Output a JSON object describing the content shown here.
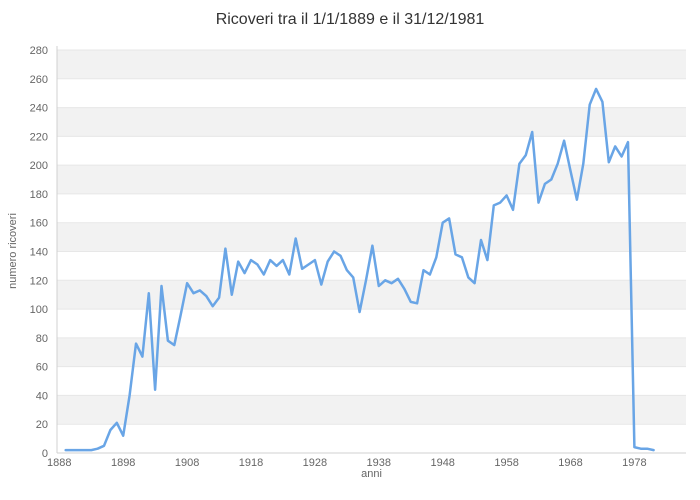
{
  "chart_data": {
    "type": "line",
    "title": "Ricoveri tra il 1/1/1889 e il 31/12/1981",
    "xlabel": "anni",
    "ylabel": "numero ricoveri",
    "legend": "none",
    "grid": "horizontal-bands",
    "xlim": [
      1888,
      1986
    ],
    "ylim": [
      0,
      280
    ],
    "x_ticks": [
      1888,
      1898,
      1908,
      1918,
      1928,
      1938,
      1948,
      1958,
      1968,
      1978
    ],
    "y_ticks": [
      0,
      20,
      40,
      60,
      80,
      100,
      120,
      140,
      160,
      180,
      200,
      220,
      240,
      260,
      280
    ],
    "x": [
      1889,
      1890,
      1891,
      1892,
      1893,
      1894,
      1895,
      1896,
      1897,
      1898,
      1899,
      1900,
      1901,
      1902,
      1903,
      1904,
      1905,
      1906,
      1907,
      1908,
      1909,
      1910,
      1911,
      1912,
      1913,
      1914,
      1915,
      1916,
      1917,
      1918,
      1919,
      1920,
      1921,
      1922,
      1923,
      1924,
      1925,
      1926,
      1927,
      1928,
      1929,
      1930,
      1931,
      1932,
      1933,
      1934,
      1935,
      1936,
      1937,
      1938,
      1939,
      1940,
      1941,
      1942,
      1943,
      1944,
      1945,
      1946,
      1947,
      1948,
      1949,
      1950,
      1951,
      1952,
      1953,
      1954,
      1955,
      1956,
      1957,
      1958,
      1959,
      1960,
      1961,
      1962,
      1963,
      1964,
      1965,
      1966,
      1967,
      1968,
      1969,
      1970,
      1971,
      1972,
      1973,
      1974,
      1975,
      1976,
      1977,
      1978,
      1979,
      1980,
      1981
    ],
    "values": [
      2,
      2,
      2,
      2,
      2,
      3,
      5,
      16,
      21,
      12,
      40,
      76,
      67,
      111,
      44,
      116,
      78,
      75,
      96,
      118,
      111,
      113,
      109,
      102,
      108,
      142,
      110,
      133,
      125,
      134,
      131,
      124,
      134,
      130,
      134,
      124,
      149,
      128,
      131,
      134,
      117,
      133,
      140,
      137,
      127,
      122,
      98,
      120,
      144,
      116,
      120,
      118,
      121,
      114,
      105,
      104,
      127,
      124,
      136,
      160,
      163,
      138,
      136,
      122,
      118,
      148,
      134,
      172,
      174,
      179,
      169,
      201,
      207,
      223,
      174,
      187,
      190,
      201,
      217,
      196,
      176,
      201,
      242,
      253,
      244,
      202,
      213,
      206,
      216,
      4,
      3,
      3,
      2
    ],
    "line_color": "#69a5e6",
    "band_color": "#f2f2f2",
    "grid_color": "#e7e7e7",
    "axis_line_color": "#d0d0d0",
    "label_color": "#666666",
    "title_color": "#333333",
    "background_color": "#ffffff"
  }
}
